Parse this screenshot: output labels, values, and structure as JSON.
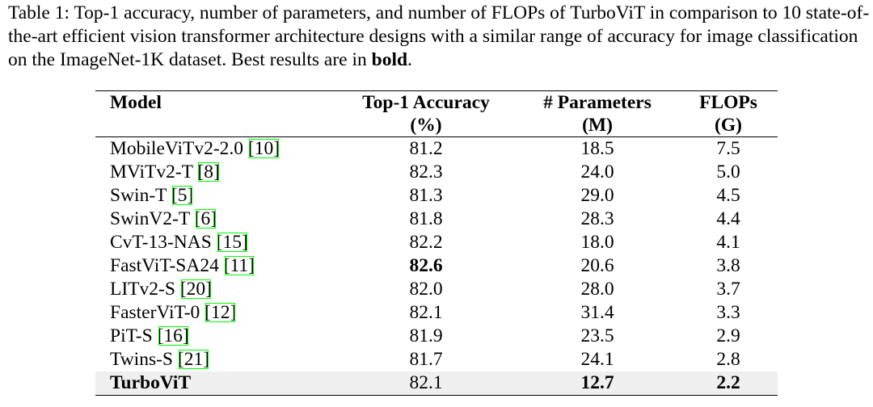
{
  "caption": {
    "label": "Table 1:",
    "text": "Top-1 accuracy, number of parameters, and number of FLOPs of TurboViT in comparison to 10 state-of-the-art efficient vision transformer architecture designs with a similar range of accuracy for image classification on the ImageNet-1K dataset. Best results are in",
    "bold": "bold",
    "end": "."
  },
  "table": {
    "columns": [
      {
        "title": "Model"
      },
      {
        "title": "Top-1 Accuracy",
        "unit": "(%)"
      },
      {
        "title": "# Parameters",
        "unit": "(M)"
      },
      {
        "title": "FLOPs",
        "unit": "(G)"
      }
    ],
    "rows": [
      {
        "model": "MobileViTv2-2.0",
        "ref": "[10]",
        "accuracy": "81.2",
        "params": "18.5",
        "flops": "7.5"
      },
      {
        "model": "MViTv2-T",
        "ref": "[8]",
        "accuracy": "82.3",
        "params": "24.0",
        "flops": "5.0"
      },
      {
        "model": "Swin-T",
        "ref": "[5]",
        "accuracy": "81.3",
        "params": "29.0",
        "flops": "4.5"
      },
      {
        "model": "SwinV2-T",
        "ref": "[6]",
        "accuracy": "81.8",
        "params": "28.3",
        "flops": "4.4"
      },
      {
        "model": "CvT-13-NAS",
        "ref": "[15]",
        "accuracy": "82.2",
        "params": "18.0",
        "flops": "4.1"
      },
      {
        "model": "FastViT-SA24",
        "ref": "[11]",
        "accuracy": "82.6",
        "params": "20.6",
        "flops": "3.8",
        "bold": [
          "accuracy"
        ]
      },
      {
        "model": "LITv2-S",
        "ref": "[20]",
        "accuracy": "82.0",
        "params": "28.0",
        "flops": "3.7"
      },
      {
        "model": "FasterViT-0",
        "ref": "[12]",
        "accuracy": "82.1",
        "params": "31.4",
        "flops": "3.3"
      },
      {
        "model": "PiT-S",
        "ref": "[16]",
        "accuracy": "81.9",
        "params": "23.5",
        "flops": "2.9"
      },
      {
        "model": "Twins-S",
        "ref": "[21]",
        "accuracy": "81.7",
        "params": "24.1",
        "flops": "2.8"
      },
      {
        "model": "TurboViT",
        "accuracy": "82.1",
        "params": "12.7",
        "flops": "2.2",
        "bold": [
          "model",
          "params",
          "flops"
        ],
        "highlight": true
      }
    ]
  }
}
